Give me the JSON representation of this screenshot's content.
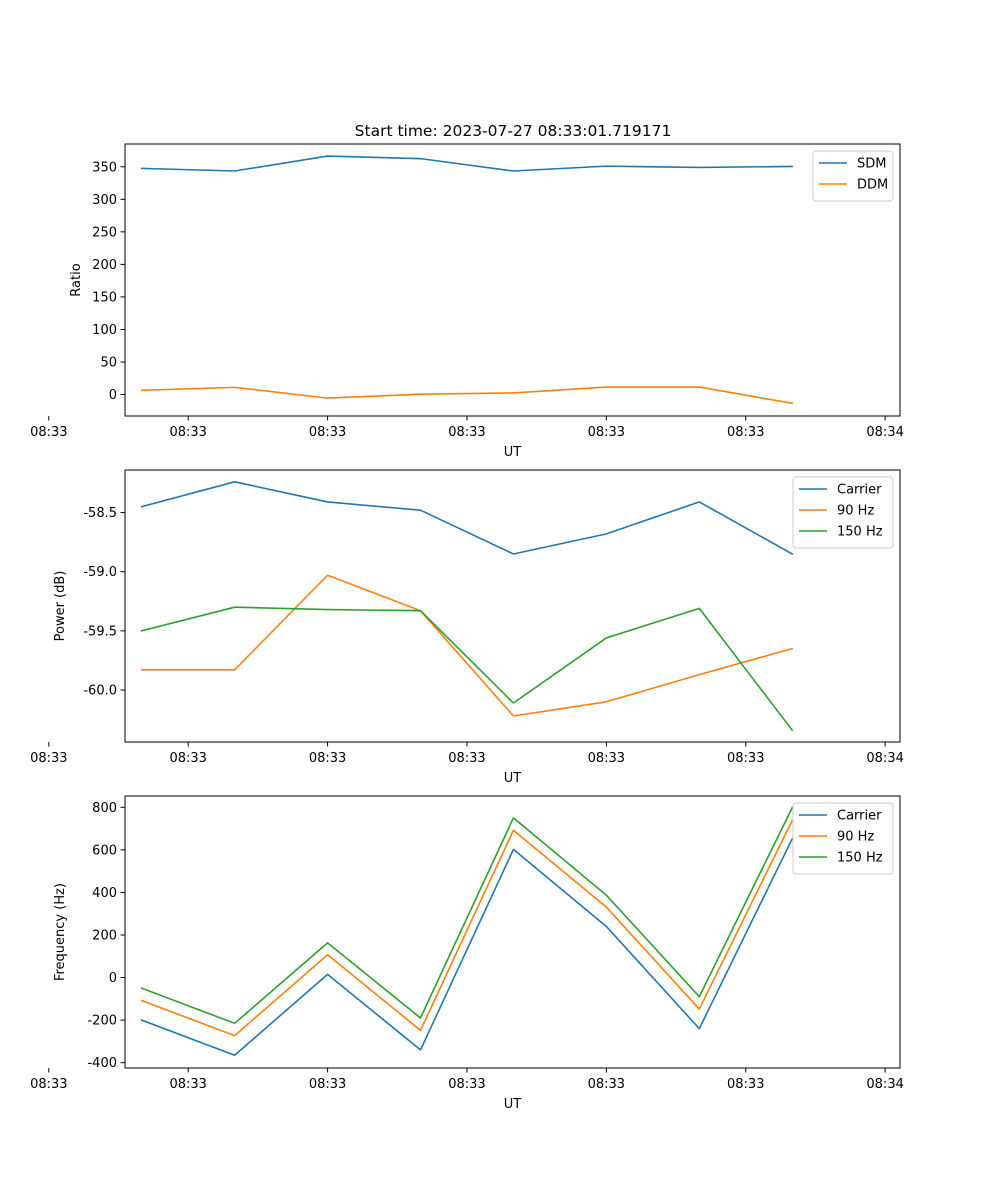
{
  "figure_title": "Start time: 2023-07-27 08:33:01.719171",
  "chart_data": [
    {
      "type": "line",
      "id": "ratio",
      "title": "Start time: 2023-07-27 08:33:01.719171",
      "xlabel": "UT",
      "ylabel": "Ratio",
      "x": [
        1,
        2,
        3,
        4,
        5,
        6,
        7,
        8
      ],
      "xlim": [
        0.82,
        9.16
      ],
      "ylim": [
        -33,
        385
      ],
      "yticks": [
        0,
        50,
        100,
        150,
        200,
        250,
        300,
        350
      ],
      "ytick_labels": [
        "0",
        "50",
        "100",
        "150",
        "200",
        "250",
        "300",
        "350"
      ],
      "xticks": [
        0,
        1.5,
        3,
        4.5,
        6,
        7.5,
        9
      ],
      "xtick_labels": [
        "08:33",
        "08:33",
        "08:33",
        "08:33",
        "08:33",
        "08:33",
        "08:34"
      ],
      "legend_loc": "upper right",
      "series": [
        {
          "name": "SDM",
          "color": "#1f77b4",
          "values": [
            347.5,
            343.5,
            366.5,
            362.5,
            343.5,
            351.0,
            349.0,
            350.5
          ]
        },
        {
          "name": "DDM",
          "color": "#ff7f0e",
          "values": [
            6.5,
            11.0,
            -5.5,
            0.5,
            2.5,
            11.5,
            11.5,
            -13.5
          ]
        }
      ]
    },
    {
      "type": "line",
      "id": "power",
      "title": "",
      "xlabel": "UT",
      "ylabel": "Power (dB)",
      "x": [
        1,
        2,
        3,
        4,
        5,
        6,
        7,
        8
      ],
      "xlim": [
        0.82,
        9.16
      ],
      "ylim": [
        -60.44,
        -58.14
      ],
      "yticks": [
        -60.0,
        -59.5,
        -59.0,
        -58.5
      ],
      "ytick_labels": [
        "-60.0",
        "-59.5",
        "-59.0",
        "-58.5"
      ],
      "xticks": [
        0,
        1.5,
        3,
        4.5,
        6,
        7.5,
        9
      ],
      "xtick_labels": [
        "08:33",
        "08:33",
        "08:33",
        "08:33",
        "08:33",
        "08:33",
        "08:34"
      ],
      "legend_loc": "upper right",
      "series": [
        {
          "name": "Carrier",
          "color": "#1f77b4",
          "values": [
            -58.45,
            -58.24,
            -58.41,
            -58.48,
            -58.85,
            -58.68,
            -58.41,
            -58.85
          ]
        },
        {
          "name": "90 Hz",
          "color": "#ff7f0e",
          "values": [
            -59.83,
            -59.83,
            -59.03,
            -59.33,
            -60.22,
            -60.1,
            -59.87,
            -59.65
          ]
        },
        {
          "name": "150 Hz",
          "color": "#2ca02c",
          "values": [
            -59.5,
            -59.3,
            -59.32,
            -59.33,
            -60.11,
            -59.56,
            -59.31,
            -60.34
          ]
        }
      ]
    },
    {
      "type": "line",
      "id": "frequency",
      "title": "",
      "xlabel": "UT",
      "ylabel": "Frequency (Hz)",
      "x": [
        1,
        2,
        3,
        4,
        5,
        6,
        7,
        8
      ],
      "xlim": [
        0.82,
        9.16
      ],
      "ylim": [
        -425,
        853
      ],
      "yticks": [
        -400,
        -200,
        0,
        200,
        400,
        600,
        800
      ],
      "ytick_labels": [
        "-400",
        "-200",
        "0",
        "200",
        "400",
        "600",
        "800"
      ],
      "xticks": [
        0,
        1.5,
        3,
        4.5,
        6,
        7.5,
        9
      ],
      "xtick_labels": [
        "08:33",
        "08:33",
        "08:33",
        "08:33",
        "08:33",
        "08:33",
        "08:34"
      ],
      "legend_loc": "upper right",
      "series": [
        {
          "name": "Carrier",
          "color": "#1f77b4",
          "values": [
            -200,
            -365,
            15,
            -340,
            602,
            240,
            -240,
            652
          ]
        },
        {
          "name": "90 Hz",
          "color": "#ff7f0e",
          "values": [
            -108,
            -273,
            107,
            -248,
            692,
            331,
            -148,
            738
          ]
        },
        {
          "name": "150 Hz",
          "color": "#2ca02c",
          "values": [
            -50,
            -215,
            163,
            -190,
            750,
            387,
            -90,
            798
          ]
        }
      ]
    }
  ]
}
